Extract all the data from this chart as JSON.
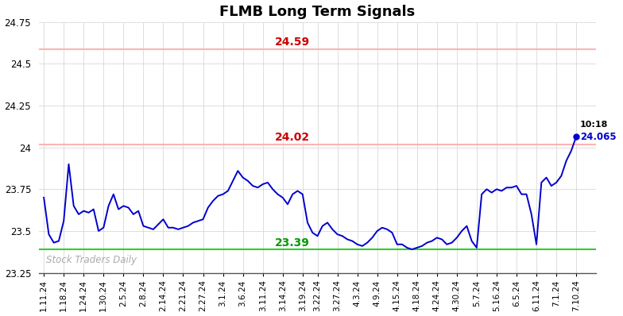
{
  "title": "FLMB Long Term Signals",
  "watermark": "Stock Traders Daily",
  "hlines": [
    {
      "y": 24.59,
      "color": "#ffb3b3",
      "label": "24.59",
      "label_color": "#cc0000"
    },
    {
      "y": 24.02,
      "color": "#ffb3b3",
      "label": "24.02",
      "label_color": "#cc0000"
    },
    {
      "y": 23.39,
      "color": "#33cc33",
      "label": "23.39",
      "label_color": "#009900"
    }
  ],
  "last_price": "24.065",
  "last_time": "10:18",
  "x_labels": [
    "1.11.24",
    "1.18.24",
    "1.24.24",
    "1.30.24",
    "2.5.24",
    "2.8.24",
    "2.14.24",
    "2.21.24",
    "2.27.24",
    "3.1.24",
    "3.6.24",
    "3.11.24",
    "3.14.24",
    "3.19.24",
    "3.22.24",
    "3.27.24",
    "4.3.24",
    "4.9.24",
    "4.15.24",
    "4.18.24",
    "4.24.24",
    "4.30.24",
    "5.7.24",
    "5.16.24",
    "6.5.24",
    "6.11.24",
    "7.1.24",
    "7.10.24"
  ],
  "y_data": [
    23.7,
    23.48,
    23.43,
    23.44,
    23.56,
    23.9,
    23.65,
    23.6,
    23.62,
    23.61,
    23.63,
    23.5,
    23.52,
    23.65,
    23.72,
    23.63,
    23.65,
    23.64,
    23.6,
    23.62,
    23.53,
    23.52,
    23.51,
    23.54,
    23.57,
    23.52,
    23.52,
    23.51,
    23.52,
    23.53,
    23.55,
    23.56,
    23.57,
    23.64,
    23.68,
    23.71,
    23.72,
    23.74,
    23.8,
    23.86,
    23.82,
    23.8,
    23.77,
    23.76,
    23.78,
    23.79,
    23.75,
    23.72,
    23.7,
    23.66,
    23.72,
    23.74,
    23.72,
    23.55,
    23.49,
    23.47,
    23.53,
    23.55,
    23.51,
    23.48,
    23.47,
    23.45,
    23.44,
    23.42,
    23.41,
    23.43,
    23.46,
    23.5,
    23.52,
    23.51,
    23.49,
    23.42,
    23.42,
    23.4,
    23.39,
    23.4,
    23.41,
    23.43,
    23.44,
    23.46,
    23.45,
    23.42,
    23.43,
    23.46,
    23.5,
    23.53,
    23.44,
    23.4,
    23.72,
    23.75,
    23.73,
    23.75,
    23.74,
    23.76,
    23.76,
    23.77,
    23.72,
    23.72,
    23.6,
    23.42,
    23.79,
    23.82,
    23.77,
    23.79,
    23.83,
    23.92,
    23.98,
    24.065
  ],
  "ylim": [
    23.25,
    24.75
  ],
  "yticks": [
    23.25,
    23.5,
    23.75,
    24.0,
    24.25,
    24.5,
    24.75
  ],
  "ytick_labels": [
    "23.25",
    "23.5",
    "23.75",
    "24",
    "24.25",
    "24.5",
    "24.75"
  ],
  "line_color": "#0000cc",
  "bg_color": "#ffffff",
  "grid_color": "#d8d8d8"
}
